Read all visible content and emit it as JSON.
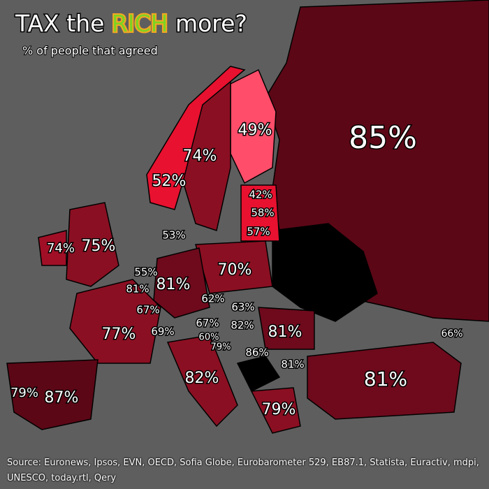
{
  "header": {
    "title_parts": [
      "TAX the ",
      "RICH",
      " more?"
    ],
    "subtitle": "% of people that agreed"
  },
  "labels": [
    "85%",
    "49%",
    "74%",
    "52%",
    "42%",
    "58%",
    "57%",
    "53%",
    "74%",
    "75%",
    "70%",
    "55%",
    "81%",
    "81%",
    "62%",
    "63%",
    "67%",
    "67%",
    "82%",
    "81%",
    "77%",
    "69%",
    "60%",
    "79%",
    "86%",
    "66%",
    "81%",
    "81%",
    "82%",
    "79%",
    "87%",
    "79%"
  ],
  "footer": {
    "source": "Source: Euronews, Ipsos, EVN, OECD, Sofia Globe, Eurobarometer 529, EB87.1, Statista, Euractiv, mdpi, UNESCO, today.rtl, Qery"
  }
}
